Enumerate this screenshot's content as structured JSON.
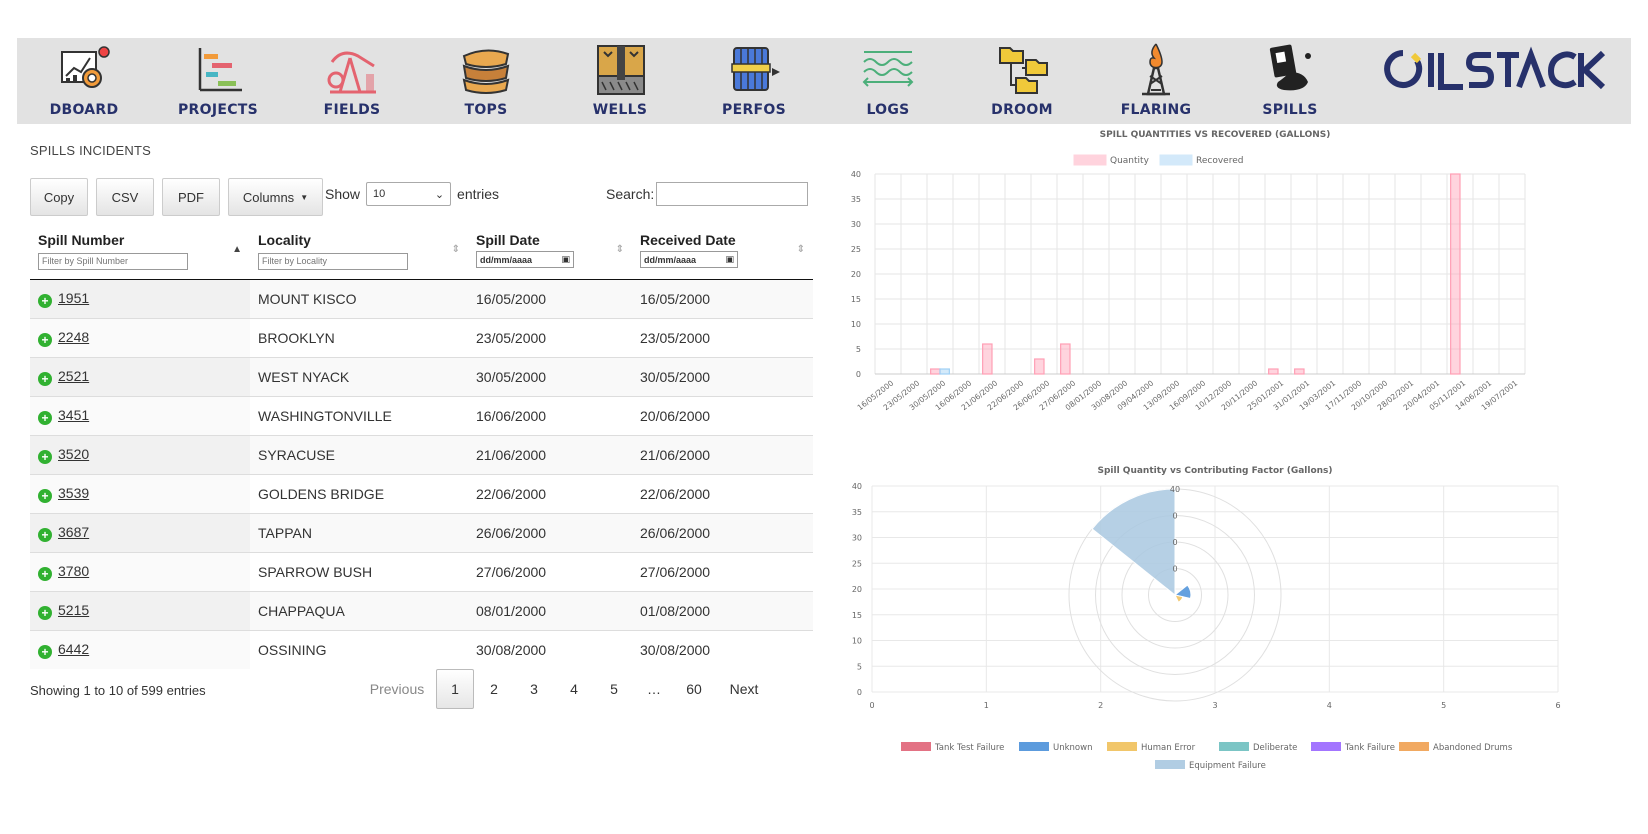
{
  "nav": {
    "items": [
      {
        "label": "DBOARD",
        "icon": "dashboard-icon"
      },
      {
        "label": "PROJECTS",
        "icon": "gantt-chart-icon"
      },
      {
        "label": "FIELDS",
        "icon": "pumpjack-icon"
      },
      {
        "label": "TOPS",
        "icon": "rock-layers-icon"
      },
      {
        "label": "WELLS",
        "icon": "well-cross-section-icon"
      },
      {
        "label": "PERFOS",
        "icon": "perforation-gun-icon"
      },
      {
        "label": "LOGS",
        "icon": "well-log-icon"
      },
      {
        "label": "DROOM",
        "icon": "data-room-folders-icon"
      },
      {
        "label": "FLARING",
        "icon": "flare-stack-icon"
      },
      {
        "label": "SPILLS",
        "icon": "spill-barrel-icon"
      }
    ],
    "logo_text": "OILSTACK",
    "colors": {
      "label": "#27316b",
      "background": "#e2e2e2"
    }
  },
  "page": {
    "heading": "SPILLS INCIDENTS"
  },
  "toolbar": {
    "copy": "Copy",
    "csv": "CSV",
    "pdf": "PDF",
    "columns": "Columns",
    "show_label": "Show",
    "entries_value": "10",
    "entries_label": "entries",
    "search_label": "Search:",
    "search_value": ""
  },
  "table": {
    "headers": {
      "spill_number": "Spill Number",
      "locality": "Locality",
      "spill_date": "Spill Date",
      "received_date": "Received Date"
    },
    "filters": {
      "spill_number": "Filter by Spill Number",
      "locality": "Filter by Locality",
      "spill_date": "dd/mm/aaaa",
      "received_date": "dd/mm/aaaa"
    },
    "rows": [
      {
        "num": "1951",
        "locality": "MOUNT KISCO",
        "spill": "16/05/2000",
        "received": "16/05/2000"
      },
      {
        "num": "2248",
        "locality": "BROOKLYN",
        "spill": "23/05/2000",
        "received": "23/05/2000"
      },
      {
        "num": "2521",
        "locality": "WEST NYACK",
        "spill": "30/05/2000",
        "received": "30/05/2000"
      },
      {
        "num": "3451",
        "locality": "WASHINGTONVILLE",
        "spill": "16/06/2000",
        "received": "20/06/2000"
      },
      {
        "num": "3520",
        "locality": "SYRACUSE",
        "spill": "21/06/2000",
        "received": "21/06/2000"
      },
      {
        "num": "3539",
        "locality": "GOLDENS BRIDGE",
        "spill": "22/06/2000",
        "received": "22/06/2000"
      },
      {
        "num": "3687",
        "locality": "TAPPAN",
        "spill": "26/06/2000",
        "received": "26/06/2000"
      },
      {
        "num": "3780",
        "locality": "SPARROW BUSH",
        "spill": "27/06/2000",
        "received": "27/06/2000"
      },
      {
        "num": "5215",
        "locality": "CHAPPAQUA",
        "spill": "08/01/2000",
        "received": "01/08/2000"
      },
      {
        "num": "6442",
        "locality": "OSSINING",
        "spill": "30/08/2000",
        "received": "30/08/2000"
      }
    ]
  },
  "info": "Showing 1 to 10 of 599 entries",
  "pagination": {
    "previous": "Previous",
    "pages": [
      "1",
      "2",
      "3",
      "4",
      "5",
      "…",
      "60"
    ],
    "current": "1",
    "next": "Next"
  },
  "chart_data": [
    {
      "type": "bar",
      "title": "SPILL QUANTITIES VS RECOVERED (GALLONS)",
      "legend": "top",
      "grid": true,
      "categories": [
        "16/05/2000",
        "23/05/2000",
        "30/05/2000",
        "16/06/2000",
        "21/06/2000",
        "22/06/2000",
        "26/06/2000",
        "27/06/2000",
        "08/01/2000",
        "30/08/2000",
        "09/04/2000",
        "13/09/2000",
        "16/09/2000",
        "10/12/2000",
        "20/11/2000",
        "25/01/2001",
        "31/01/2001",
        "19/03/2001",
        "17/11/2000",
        "20/10/2000",
        "28/02/2001",
        "20/04/2001",
        "05/11/2001",
        "14/06/2001",
        "19/07/2001"
      ],
      "series": [
        {
          "name": "Quantity",
          "color": "#ff9fb5",
          "values": [
            0,
            0,
            1,
            0,
            6,
            0,
            3,
            6,
            0,
            0,
            0,
            0,
            0,
            0,
            0,
            1,
            1,
            0,
            0,
            0,
            0,
            0,
            40,
            0,
            0
          ]
        },
        {
          "name": "Recovered",
          "color": "#9fd0f5",
          "values": [
            0,
            0,
            1,
            0,
            0,
            0,
            0,
            0,
            0,
            0,
            0,
            0,
            0,
            0,
            0,
            0,
            0,
            0,
            0,
            0,
            0,
            0,
            0,
            0,
            0
          ]
        }
      ],
      "ylim": [
        0,
        40
      ],
      "yticks": [
        "0",
        "5",
        "10",
        "15",
        "20",
        "25",
        "30",
        "35",
        "40"
      ]
    },
    {
      "type": "polar-area",
      "title": "Spill Quantity vs Contributing Factor (Gallons)",
      "legend": "bottom",
      "grid": true,
      "categories": [
        "Tank Test Failure",
        "Unknown",
        "Human Error",
        "Deliberate",
        "Tank Failure",
        "Abandoned Drums",
        "Equipment Failure"
      ],
      "colors": [
        "#e06377",
        "#4a90d9",
        "#f0c05a",
        "#6dbfbf",
        "#9966ff",
        "#f0a050",
        "#a9c8e0"
      ],
      "values": [
        0,
        6,
        3,
        0,
        0,
        0,
        40
      ],
      "radial_ticks": [
        "0",
        "0",
        "0",
        "40"
      ],
      "ylim": [
        0,
        40
      ],
      "xlim": [
        0,
        6
      ],
      "yticks": [
        "0",
        "5",
        "10",
        "15",
        "20",
        "25",
        "30",
        "35",
        "40"
      ],
      "xticks": [
        "0",
        "1",
        "2",
        "3",
        "4",
        "5",
        "6"
      ]
    }
  ]
}
